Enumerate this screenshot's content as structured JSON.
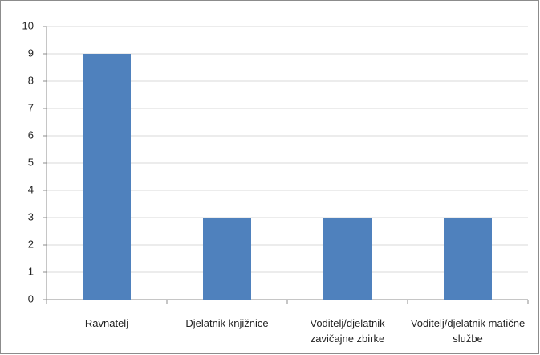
{
  "chart_data": {
    "type": "bar",
    "categories": [
      "Ravnatelj",
      "Djelatnik knjižnice",
      "Voditelj/djelatnik zavičajne zbirke",
      "Voditelj/djelatnik matične službe"
    ],
    "values": [
      9,
      3,
      3,
      3
    ],
    "color": "#4f81bd",
    "ylim": [
      0,
      10
    ],
    "yticks": [
      0,
      1,
      2,
      3,
      4,
      5,
      6,
      7,
      8,
      9,
      10
    ],
    "grid": true
  }
}
